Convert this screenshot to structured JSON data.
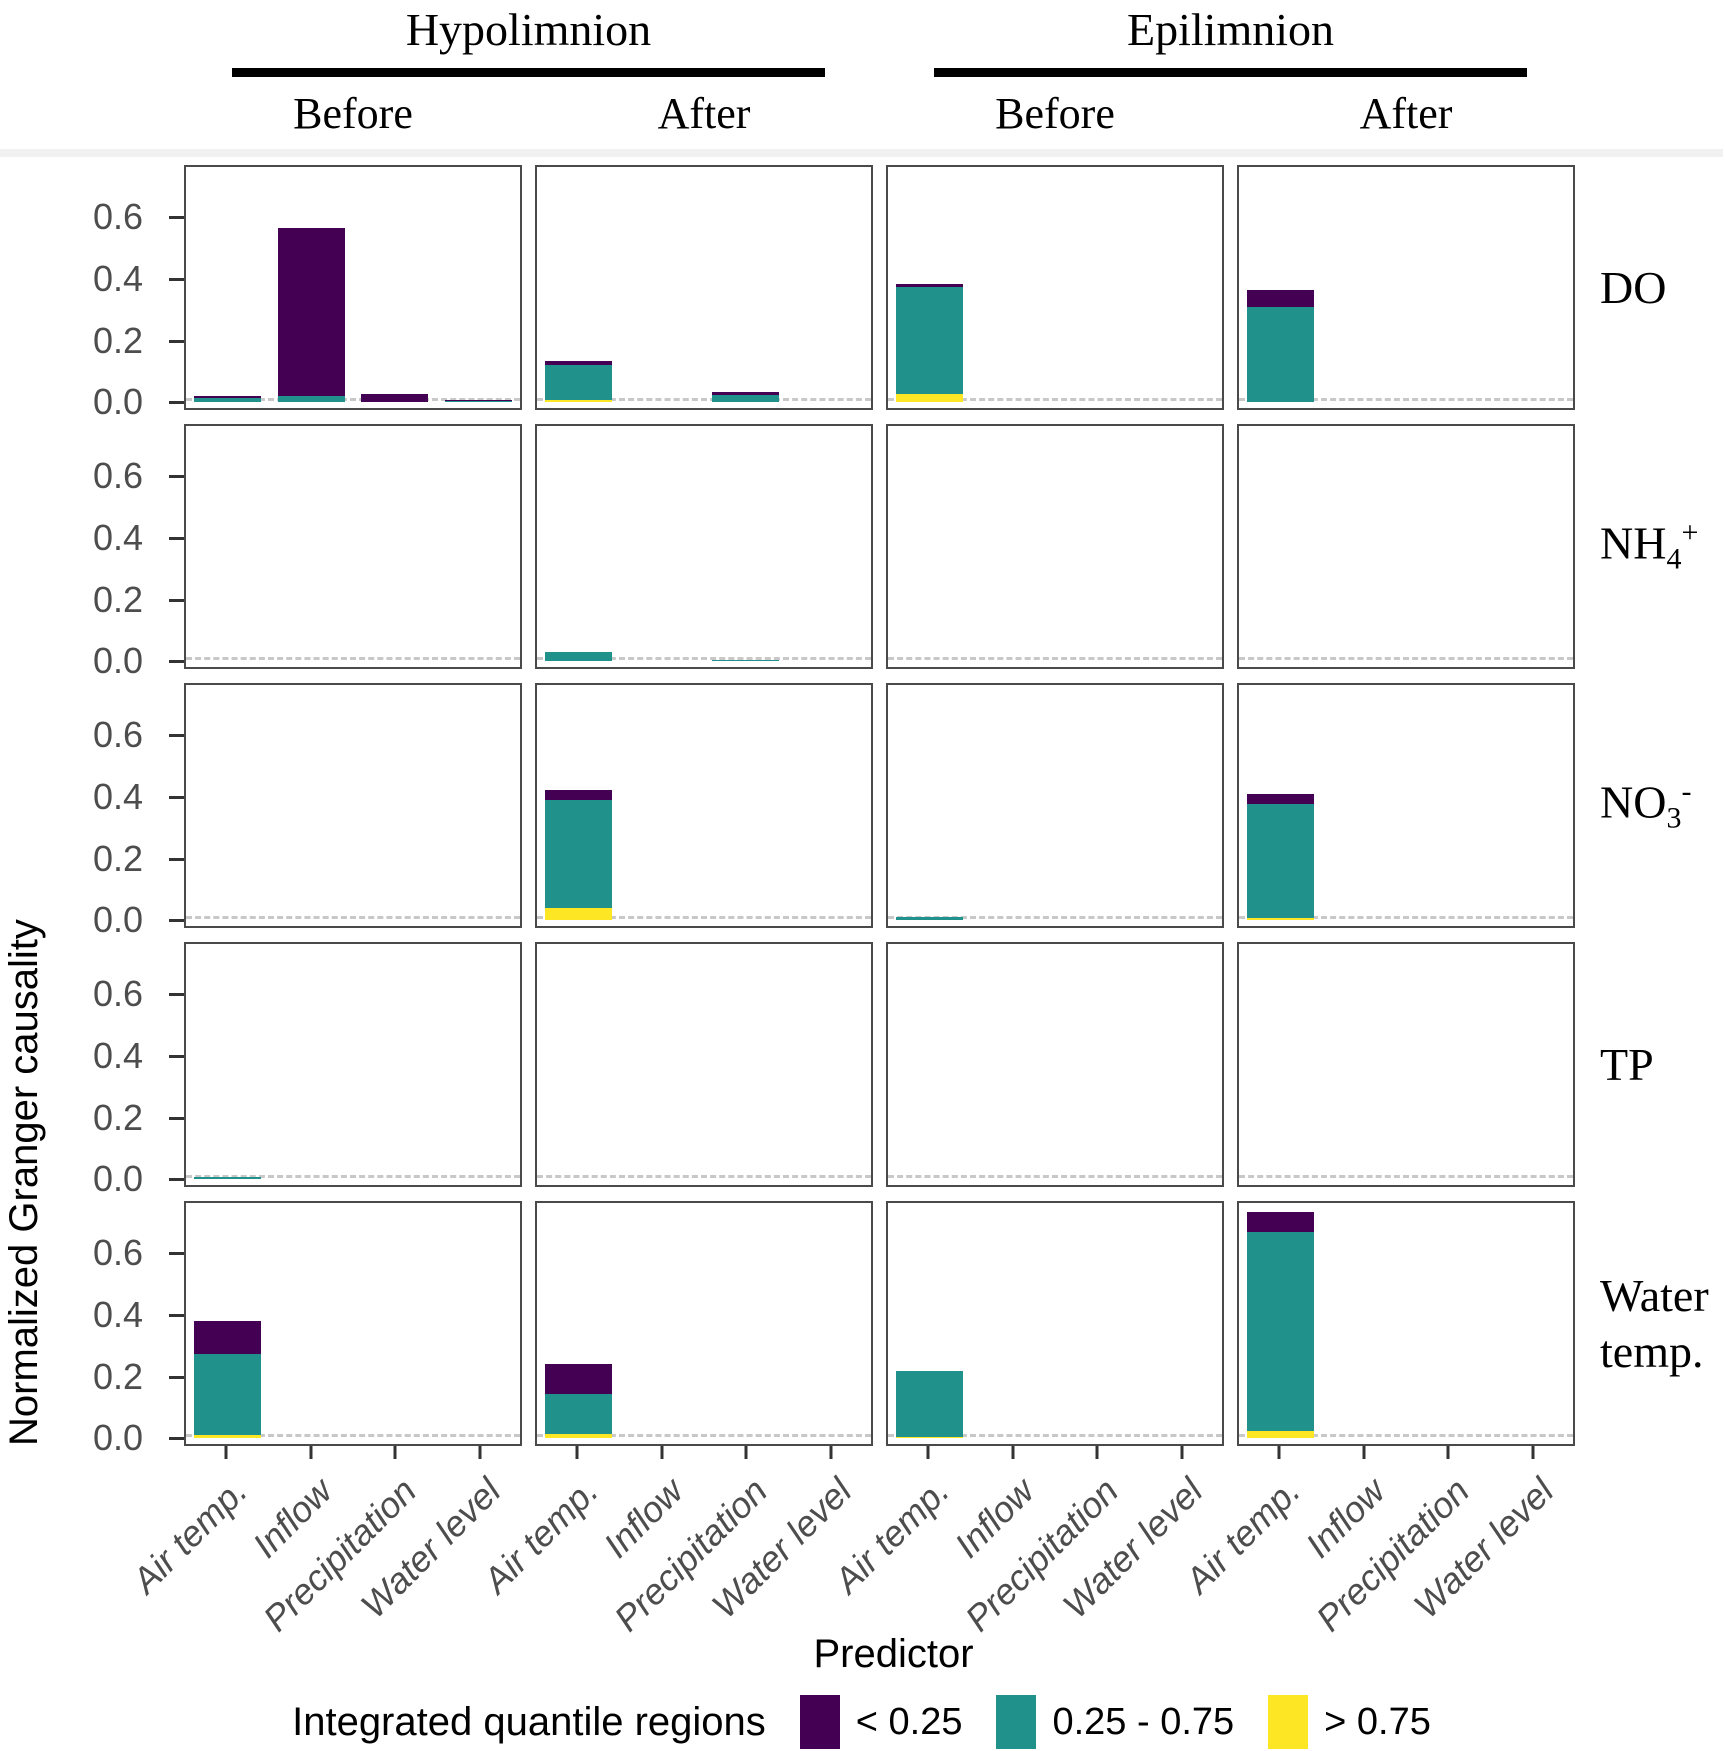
{
  "figure": {
    "y_axis_title": "Normalized Granger causality",
    "x_axis_title": "Predictor",
    "legend_title": "Integrated quantile regions"
  },
  "chart_data": {
    "type": "bar",
    "stacked": true,
    "title": "",
    "ylabel": "Normalized Granger causality",
    "xlabel": "Predictor",
    "facet_col_groups": [
      {
        "label": "Hypolimnion",
        "cols": [
          0,
          1
        ]
      },
      {
        "label": "Epilimnion",
        "cols": [
          2,
          3
        ]
      }
    ],
    "facet_cols": [
      {
        "group": "Hypolimnion",
        "label": "Before"
      },
      {
        "group": "Hypolimnion",
        "label": "After"
      },
      {
        "group": "Epilimnion",
        "label": "Before"
      },
      {
        "group": "Epilimnion",
        "label": "After"
      }
    ],
    "facet_rows": [
      {
        "name": "DO",
        "label_parts": [
          {
            "t": "DO"
          }
        ]
      },
      {
        "name": "NH4+",
        "label_parts": [
          {
            "t": "NH"
          },
          {
            "sub": "4"
          },
          {
            "sup": "+"
          }
        ]
      },
      {
        "name": "NO3-",
        "label_parts": [
          {
            "t": "NO"
          },
          {
            "sub": "3"
          },
          {
            "sup": "-"
          }
        ]
      },
      {
        "name": "TP",
        "label_parts": [
          {
            "t": "TP"
          }
        ]
      },
      {
        "name": "Water temp.",
        "label_parts": [
          {
            "t": "Water"
          },
          {
            "br": true
          },
          {
            "t": "temp."
          }
        ]
      }
    ],
    "categories": [
      "Air temp.",
      "Inflow",
      "Precipitation",
      "Water level"
    ],
    "segments_bottom_to_top": [
      {
        "key": "gt075",
        "label": "> 0.75",
        "color": "#FDE725"
      },
      {
        "key": "mid",
        "label": "0.25 - 0.75",
        "color": "#21918C"
      },
      {
        "key": "lt025",
        "label": "< 0.25",
        "color": "#440154"
      }
    ],
    "legend_entries": [
      {
        "label": "< 0.25",
        "color": "#440154"
      },
      {
        "label": "0.25 - 0.75",
        "color": "#21918C"
      },
      {
        "label": "> 0.75",
        "color": "#FDE725"
      }
    ],
    "ylim": [
      -0.025,
      0.77
    ],
    "yticks": [
      {
        "label": "0.0",
        "value": 0.0
      },
      {
        "label": "0.2",
        "value": 0.2
      },
      {
        "label": "0.4",
        "value": 0.4
      },
      {
        "label": "0.6",
        "value": 0.6
      }
    ],
    "zero_line": {
      "value": 0,
      "style": "dashed",
      "color": "#c8c8c8"
    },
    "grid": false,
    "legend_position": "bottom",
    "values_note": "values[row][col][category] = [gt075, mid, lt025] stacked bottom-to-top",
    "values": [
      [
        [
          [
            0,
            0.013,
            0.009
          ],
          [
            0,
            0.022,
            0.545
          ],
          [
            0,
            0,
            0.028
          ],
          [
            0,
            0.003,
            0.006
          ]
        ],
        [
          [
            0.008,
            0.112,
            0.014
          ],
          [
            0,
            0,
            0
          ],
          [
            0,
            0.025,
            0.008
          ],
          [
            0,
            0,
            0
          ]
        ],
        [
          [
            0.028,
            0.345,
            0.01
          ],
          [
            0,
            0,
            0
          ],
          [
            0,
            0,
            0
          ],
          [
            0,
            0,
            0
          ]
        ],
        [
          [
            0,
            0.31,
            0.055
          ],
          [
            0,
            0,
            0
          ],
          [
            0,
            0,
            0
          ],
          [
            0,
            0,
            0
          ]
        ]
      ],
      [
        [
          [
            0,
            0,
            0
          ],
          [
            0,
            0,
            0
          ],
          [
            0,
            0,
            0
          ],
          [
            0,
            0,
            0
          ]
        ],
        [
          [
            0,
            0.03,
            0
          ],
          [
            0,
            0,
            0
          ],
          [
            0,
            0.004,
            0
          ],
          [
            0,
            0,
            0
          ]
        ],
        [
          [
            0,
            0,
            0
          ],
          [
            0,
            0,
            0
          ],
          [
            0,
            0,
            0
          ],
          [
            0,
            0,
            0
          ]
        ],
        [
          [
            0,
            0,
            0
          ],
          [
            0,
            0,
            0
          ],
          [
            0,
            0,
            0
          ],
          [
            0,
            0,
            0
          ]
        ]
      ],
      [
        [
          [
            0,
            0,
            0
          ],
          [
            0,
            0,
            0
          ],
          [
            0,
            0,
            0
          ],
          [
            0,
            0,
            0
          ]
        ],
        [
          [
            0.04,
            0.35,
            0.032
          ],
          [
            0,
            0,
            0
          ],
          [
            0,
            0,
            0
          ],
          [
            0,
            0,
            0
          ]
        ],
        [
          [
            0,
            0.012,
            0
          ],
          [
            0,
            0,
            0
          ],
          [
            0,
            0,
            0
          ],
          [
            0,
            0,
            0
          ]
        ],
        [
          [
            0.006,
            0.372,
            0.032
          ],
          [
            0,
            0,
            0
          ],
          [
            0,
            0,
            0
          ],
          [
            0,
            0,
            0
          ]
        ]
      ],
      [
        [
          [
            0,
            0.008,
            0
          ],
          [
            0,
            0,
            0
          ],
          [
            0,
            0,
            0
          ],
          [
            0,
            0,
            0
          ]
        ],
        [
          [
            0,
            0,
            0
          ],
          [
            0,
            0,
            0
          ],
          [
            0,
            0,
            0
          ],
          [
            0,
            0,
            0
          ]
        ],
        [
          [
            0,
            0,
            0
          ],
          [
            0,
            0,
            0
          ],
          [
            0,
            0,
            0
          ],
          [
            0,
            0,
            0
          ]
        ],
        [
          [
            0,
            0,
            0
          ],
          [
            0,
            0,
            0
          ],
          [
            0,
            0,
            0
          ],
          [
            0,
            0,
            0
          ]
        ]
      ],
      [
        [
          [
            0.01,
            0.262,
            0.108
          ],
          [
            0,
            0,
            0
          ],
          [
            0,
            0,
            0
          ],
          [
            0,
            0,
            0
          ]
        ],
        [
          [
            0.015,
            0.13,
            0.095
          ],
          [
            0,
            0,
            0
          ],
          [
            0,
            0,
            0
          ],
          [
            0,
            0,
            0
          ]
        ],
        [
          [
            0.005,
            0.215,
            0
          ],
          [
            0,
            0,
            0
          ],
          [
            0,
            0,
            0
          ],
          [
            0,
            0,
            0
          ]
        ],
        [
          [
            0.025,
            0.645,
            0.065
          ],
          [
            0,
            0,
            0
          ],
          [
            0,
            0,
            0
          ],
          [
            0,
            0,
            0
          ]
        ]
      ]
    ]
  }
}
